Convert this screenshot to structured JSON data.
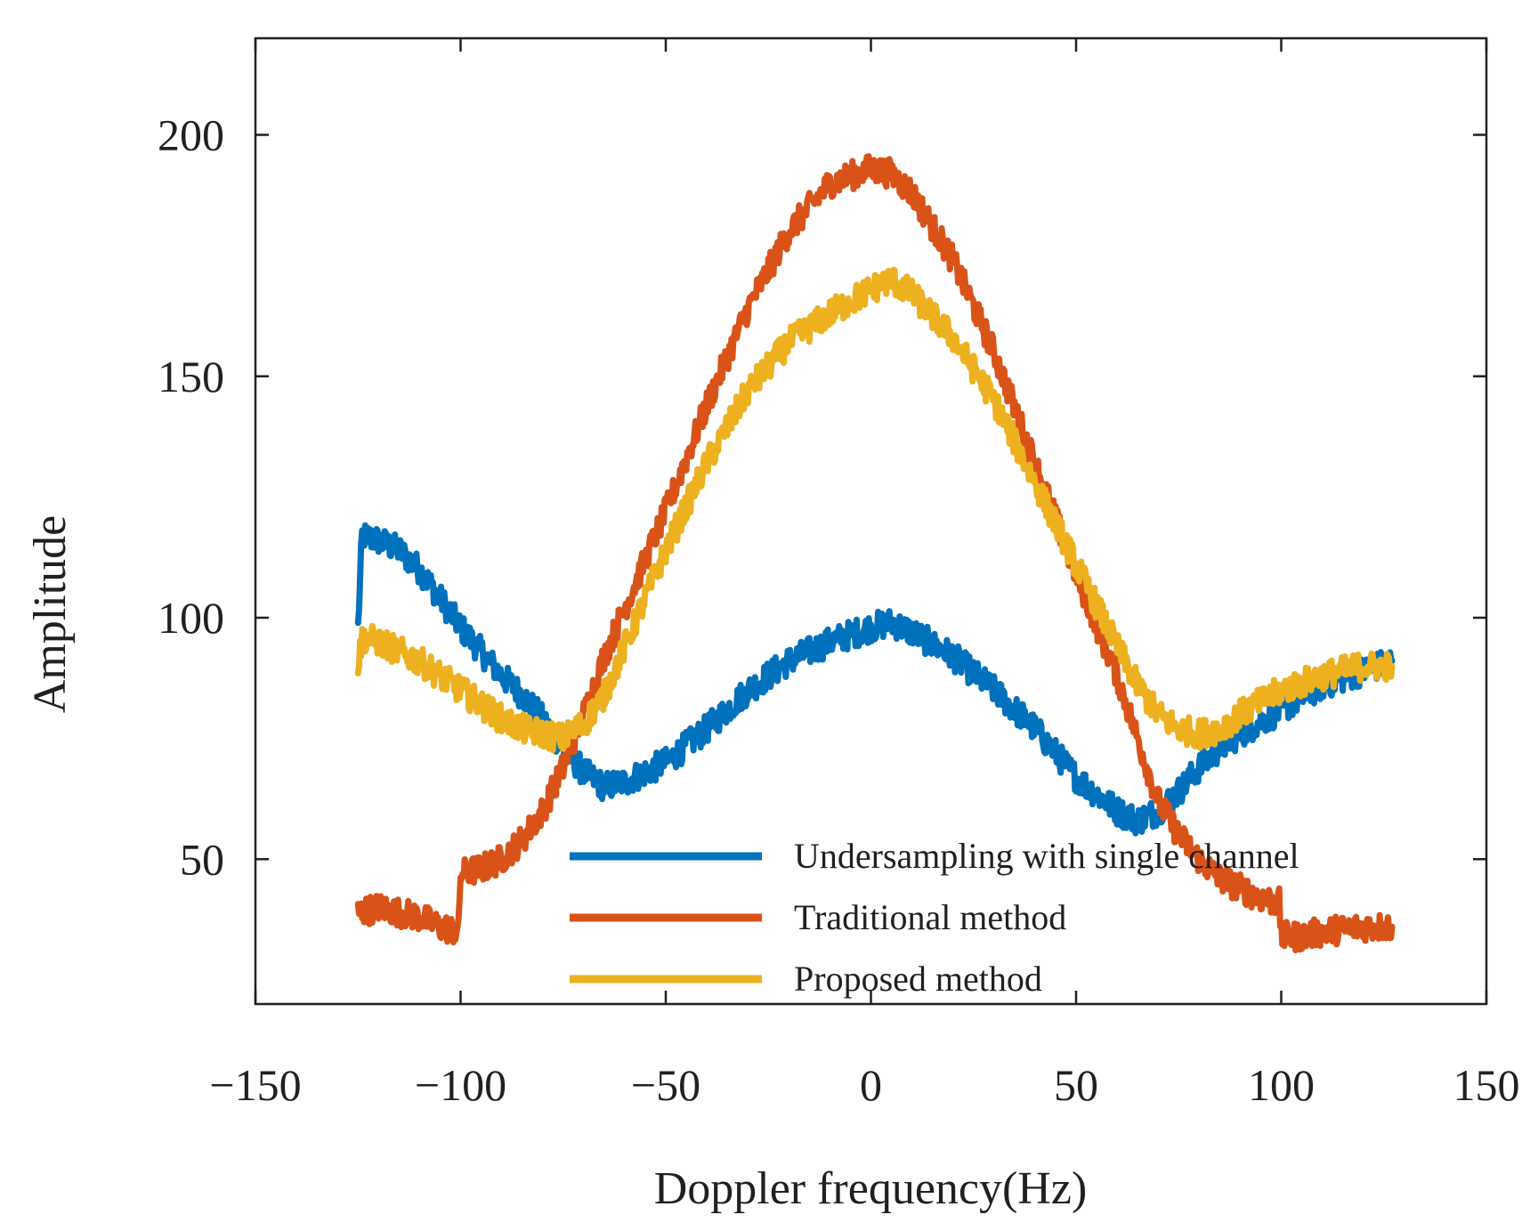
{
  "chart_data": {
    "type": "line",
    "title": "",
    "xlabel": "Doppler frequency(Hz)",
    "ylabel": "Amplitude",
    "xlim": [
      -150,
      150
    ],
    "ylim": [
      20,
      220
    ],
    "xticks": [
      -150,
      -100,
      -50,
      0,
      50,
      100,
      150
    ],
    "xtick_labels": [
      "−150",
      "−100",
      "−50",
      "0",
      "50",
      "100",
      "150"
    ],
    "yticks": [
      50,
      100,
      150,
      200
    ],
    "ytick_labels": [
      "50",
      "100",
      "150",
      "200"
    ],
    "grid": false,
    "legend_position": "bottom-right",
    "series": [
      {
        "name": "Undersampling with single channel",
        "color": "#0072BD",
        "noise": 3,
        "x": [
          -125,
          -124,
          -120,
          -115,
          -110,
          -105,
          -100,
          -95,
          -90,
          -85,
          -80,
          -75,
          -70,
          -65,
          -60,
          -50,
          -40,
          -30,
          -20,
          -10,
          0,
          5,
          10,
          20,
          30,
          40,
          50,
          60,
          65,
          70,
          75,
          80,
          85,
          90,
          100,
          110,
          120,
          127
        ],
        "y": [
          98,
          117,
          116,
          114,
          110,
          104,
          98,
          93,
          88,
          84,
          79,
          73,
          68,
          65,
          66,
          70,
          77,
          85,
          91,
          95,
          98,
          99,
          97,
          92,
          85,
          77,
          67,
          60,
          58,
          60,
          64,
          69,
          73,
          76,
          81,
          86,
          89,
          91
        ]
      },
      {
        "name": "Traditional method",
        "color": "#D95319",
        "noise": 3,
        "x": [
          -125,
          -120,
          -115,
          -110,
          -105,
          -100.5,
          -100,
          -95,
          -90,
          -85,
          -80,
          -75,
          -70,
          -65,
          -60,
          -50,
          -40,
          -30,
          -20,
          -10,
          0,
          5,
          10,
          20,
          30,
          40,
          50,
          60,
          65,
          70,
          75,
          80,
          85,
          90,
          95,
          99.5,
          100,
          105,
          110,
          120,
          127
        ],
        "y": [
          39,
          40,
          39,
          38,
          36,
          35,
          47,
          48,
          50,
          54,
          60,
          69,
          80,
          92,
          102,
          122,
          144,
          164,
          180,
          190,
          193,
          192,
          188,
          174,
          155,
          132,
          109,
          88,
          75,
          62,
          55,
          50,
          46,
          44,
          42,
          41,
          34,
          34,
          35,
          36,
          36
        ]
      },
      {
        "name": "Proposed method",
        "color": "#EDB120",
        "noise": 3,
        "x": [
          -125,
          -124,
          -120,
          -115,
          -110,
          -105,
          -100,
          -95,
          -90,
          -85,
          -80,
          -75,
          -70,
          -65,
          -60,
          -50,
          -40,
          -30,
          -20,
          -10,
          0,
          5,
          10,
          20,
          30,
          40,
          50,
          60,
          65,
          70,
          75,
          80,
          85,
          90,
          100,
          110,
          120,
          127
        ],
        "y": [
          90,
          96,
          95,
          93,
          91,
          88,
          85,
          82,
          79,
          77,
          76,
          75,
          78,
          84,
          94,
          114,
          132,
          147,
          157,
          163,
          168,
          170,
          167,
          158,
          145,
          128,
          111,
          94,
          86,
          80,
          77,
          76,
          77,
          80,
          85,
          88,
          90,
          90
        ]
      }
    ]
  }
}
